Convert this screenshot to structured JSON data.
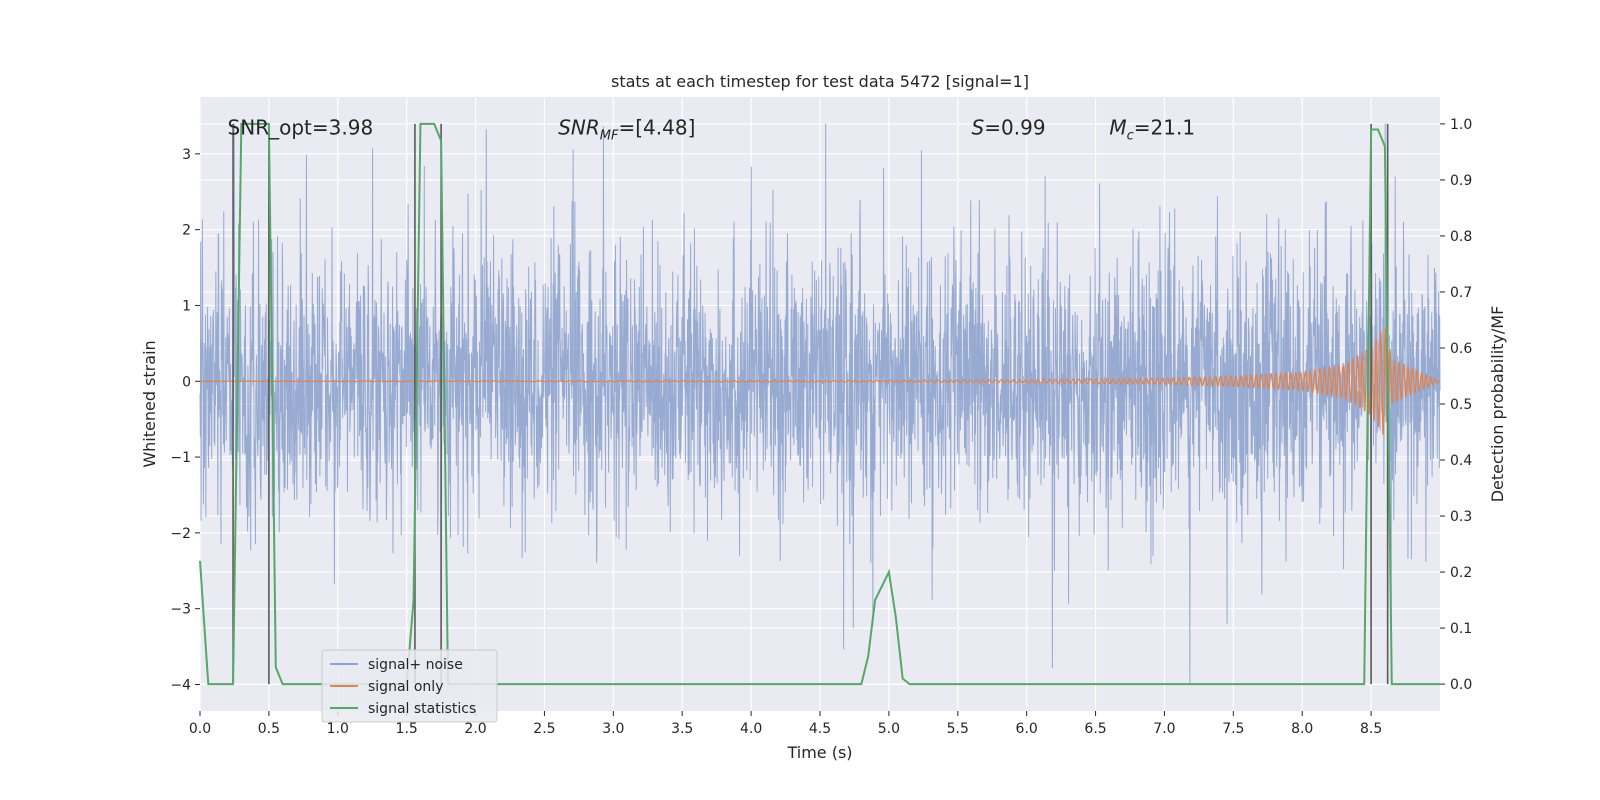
{
  "chart_data": {
    "type": "line",
    "title": "stats at each timestep for test data 5472 [signal=1]",
    "xlabel": "Time (s)",
    "ylabel_left": "Whitened strain",
    "ylabel_right": "Detection probability/MF",
    "xlim": [
      0.0,
      9.0
    ],
    "ylim_left": [
      -4.35,
      3.75
    ],
    "ylim_right": [
      -0.048,
      1.048
    ],
    "x_ticks": [
      0.0,
      0.5,
      1.0,
      1.5,
      2.0,
      2.5,
      3.0,
      3.5,
      4.0,
      4.5,
      5.0,
      5.5,
      6.0,
      6.5,
      7.0,
      7.5,
      8.0,
      8.5
    ],
    "x_tick_labels": [
      "0.0",
      "0.5",
      "1.0",
      "1.5",
      "2.0",
      "2.5",
      "3.0",
      "3.5",
      "4.0",
      "4.5",
      "5.0",
      "5.5",
      "6.0",
      "6.5",
      "7.0",
      "7.5",
      "8.0",
      "8.5"
    ],
    "y_left_ticks": [
      3,
      2,
      1,
      0,
      -1,
      -2,
      -3,
      -4
    ],
    "y_left_tick_labels": [
      "3",
      "2",
      "1",
      "0",
      "−1",
      "−2",
      "−3",
      "−4"
    ],
    "y_right_ticks": [
      1.0,
      0.9,
      0.8,
      0.7,
      0.6,
      0.5,
      0.4,
      0.3,
      0.2,
      0.1,
      0.0
    ],
    "y_right_tick_labels": [
      "1.0",
      "0.9",
      "0.8",
      "0.7",
      "0.6",
      "0.5",
      "0.4",
      "0.3",
      "0.2",
      "0.1",
      "0.0"
    ],
    "annotations": [
      {
        "text": "SNR_opt=3.98",
        "x": 0.2,
        "y": 3.35
      },
      {
        "text": "SNR",
        "sub": "MF",
        "rest": "=[4.48]",
        "x": 2.6,
        "y": 3.35
      },
      {
        "text": "S",
        "rest": "=0.99",
        "x": 5.6,
        "y": 3.35
      },
      {
        "text": "M",
        "sub": "c",
        "rest": "=21.1",
        "x": 6.6,
        "y": 3.35
      }
    ],
    "series": [
      {
        "name": "signal+ noise",
        "color": "#8ea3cd",
        "axis": "left",
        "description": "whitened strain noise, approx amplitude envelope",
        "x_range": [
          0.0,
          9.0
        ],
        "typical_amplitude": 1.6,
        "peak_range": [
          -4.0,
          3.4
        ]
      },
      {
        "name": "signal only",
        "color": "#dd8452",
        "axis": "left",
        "x": [
          0.0,
          5.0,
          6.0,
          7.0,
          7.5,
          8.0,
          8.3,
          8.5,
          8.6,
          8.65,
          9.0
        ],
        "amplitude": [
          0.0,
          0.01,
          0.02,
          0.04,
          0.07,
          0.12,
          0.22,
          0.45,
          0.75,
          0.3,
          0.0
        ]
      },
      {
        "name": "signal statistics",
        "color": "#55a868",
        "axis": "right",
        "x": [
          0.0,
          0.06,
          0.1,
          0.15,
          0.2,
          0.24,
          0.3,
          0.35,
          0.4,
          0.45,
          0.5,
          0.55,
          0.6,
          0.65,
          1.5,
          1.55,
          1.6,
          1.65,
          1.7,
          1.75,
          1.8,
          1.85,
          1.9,
          4.75,
          4.8,
          4.85,
          4.9,
          5.0,
          5.05,
          5.1,
          5.15,
          5.2,
          8.45,
          8.5,
          8.55,
          8.6,
          8.65,
          8.7,
          9.0
        ],
        "y": [
          0.22,
          0.0,
          0.0,
          0.0,
          0.0,
          0.0,
          1.0,
          1.0,
          1.0,
          1.0,
          1.0,
          0.03,
          0.0,
          0.0,
          0.0,
          0.15,
          1.0,
          1.0,
          1.0,
          0.97,
          0.0,
          0.0,
          0.0,
          0.0,
          0.0,
          0.05,
          0.15,
          0.2,
          0.12,
          0.01,
          0.0,
          0.0,
          0.0,
          0.99,
          0.99,
          0.96,
          0.0,
          0.0,
          0.0
        ]
      }
    ],
    "vertical_lines": [
      0.24,
      0.5,
      1.56,
      1.75,
      8.5,
      8.62
    ],
    "legend": {
      "location": "lower-left",
      "entries": [
        "signal+ noise",
        "signal only",
        "signal statistics"
      ]
    },
    "grid": true,
    "background": "#eaeaf2"
  }
}
